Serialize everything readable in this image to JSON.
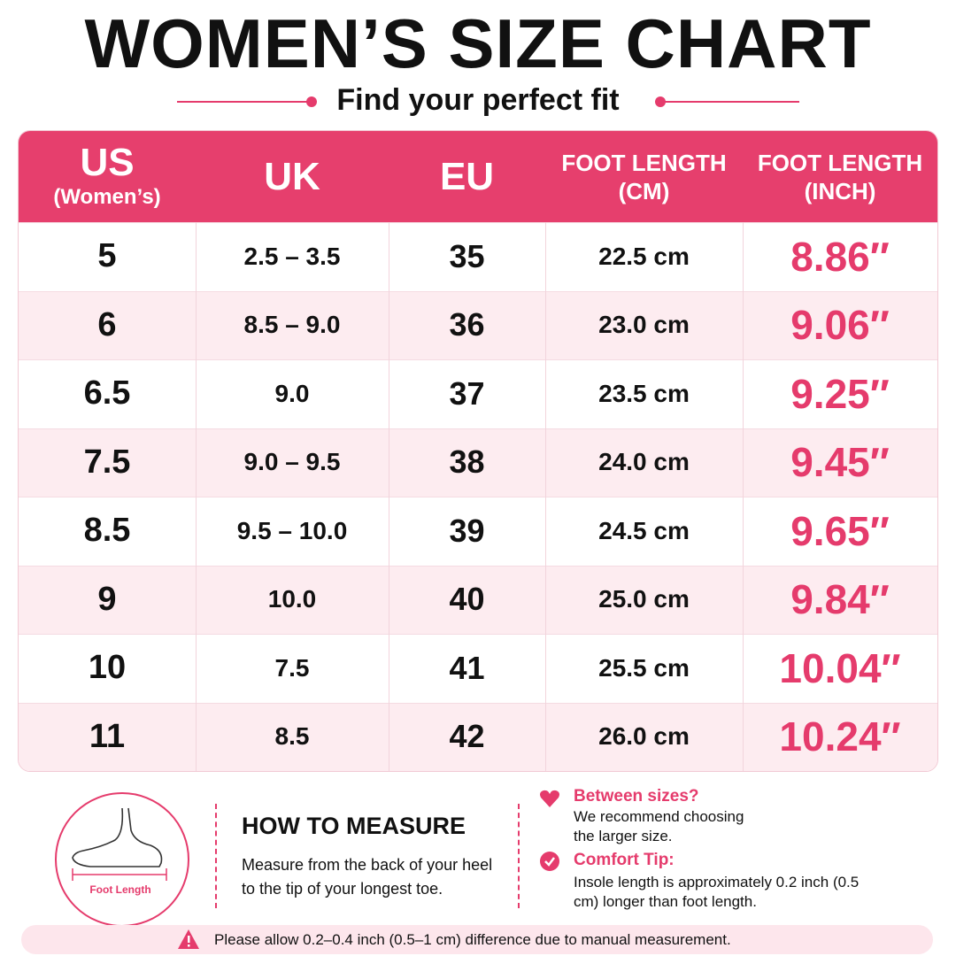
{
  "header": {
    "title": "WOMEN’S SIZE CHART",
    "subtitle": "Find your perfect fit"
  },
  "table": {
    "columns": [
      {
        "label": "US",
        "sub": "(Women’s)"
      },
      {
        "label": "UK"
      },
      {
        "label": "EU"
      },
      {
        "label": "FOOT LENGTH",
        "sub": "(CM)"
      },
      {
        "label": "FOOT LENGTH",
        "sub": "(INCH)"
      }
    ],
    "rows": [
      [
        "5",
        "2.5 – 3.5",
        "35",
        "22.5 cm",
        "8.86″"
      ],
      [
        "6",
        "8.5 – 9.0",
        "36",
        "23.0 cm",
        "9.06″"
      ],
      [
        "6.5",
        "9.0",
        "37",
        "23.5 cm",
        "9.25″"
      ],
      [
        "7.5",
        "9.0 – 9.5",
        "38",
        "24.0 cm",
        "9.45″"
      ],
      [
        "8.5",
        "9.5 – 10.0",
        "39",
        "24.5 cm",
        "9.65″"
      ],
      [
        "9",
        "10.0",
        "40",
        "25.0 cm",
        "9.84″"
      ],
      [
        "10",
        "7.5",
        "41",
        "25.5 cm",
        "10.04″"
      ],
      [
        "11",
        "8.5",
        "42",
        "26.0 cm",
        "10.24″"
      ]
    ]
  },
  "measure": {
    "caption": "Foot Length",
    "title": "HOW TO MEASURE",
    "text": "Measure from the back of your heel to the tip of your longest toe."
  },
  "tips": [
    {
      "title": "Between sizes?",
      "text": "We recommend choosing the larger size."
    },
    {
      "title": "Comfort Tip:",
      "text": "Insole length is approximately 0.2 inch (0.5 cm) longer than foot length."
    }
  ],
  "note": "Please allow 0.2–0.4 inch (0.5–1 cm) difference due to manual measurement."
}
